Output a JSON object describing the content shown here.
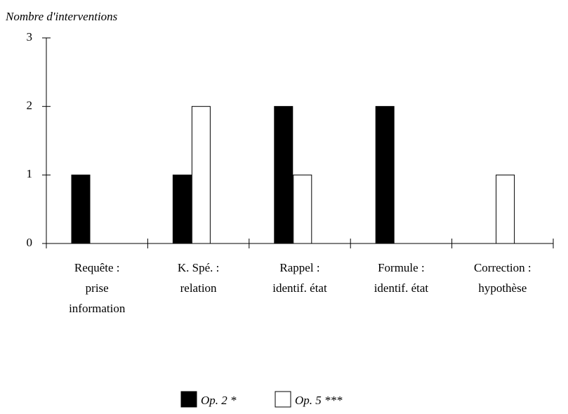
{
  "chart_data": {
    "type": "bar",
    "y_label": "Nombre d'interventions",
    "categories": [
      [
        "Requête :",
        "prise",
        "information"
      ],
      [
        "K. Spé. :",
        "relation"
      ],
      [
        "Rappel :",
        "identif. état"
      ],
      [
        "Formule :",
        "identif. état"
      ],
      [
        "Correction :",
        "hypothèse"
      ]
    ],
    "series": [
      {
        "name": "Op. 2 *",
        "color": "#000000",
        "values": [
          1,
          1,
          2,
          2,
          0
        ]
      },
      {
        "name": "Op. 5 ***",
        "color": "#ffffff",
        "values": [
          0,
          2,
          1,
          0,
          1
        ]
      }
    ],
    "ylim": [
      0,
      3
    ],
    "yticks": [
      0,
      1,
      2,
      3
    ]
  }
}
